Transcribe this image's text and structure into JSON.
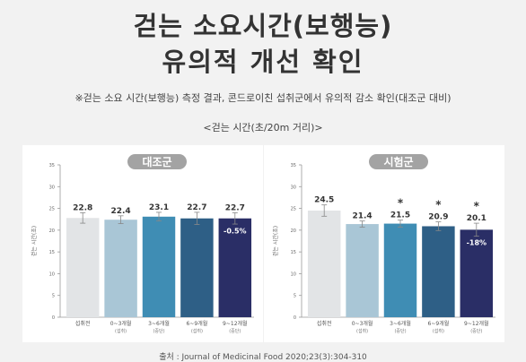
{
  "header": {
    "title_line1": "걷는 소요시간(보행능)",
    "title_line2": "유의적 개선 확인",
    "note": "※걷는 소요 시간(보행능) 측정 결과, 콘드로이친 섭취군에서 유의적 감소 확인(대조군 대비)",
    "unit_label": "<걷는 시간(초/20m 거리)>"
  },
  "colors": {
    "pill": "#a3a3a3",
    "bar_0": "#e2e4e6",
    "bar_1": "#a9c6d6",
    "bar_2": "#3f8db4",
    "bar_3": "#2e5f86",
    "bar_4": "#2a2e66",
    "axis": "#999999",
    "text": "#333333"
  },
  "chart_data": [
    {
      "type": "bar",
      "title": "대조군",
      "ylabel": "걷는 시간(초)",
      "ylim": [
        0,
        35
      ],
      "yticks": [
        "0",
        "5",
        "10",
        "15",
        "20",
        "25",
        "30",
        "35"
      ],
      "categories": [
        {
          "line1": "섭취전",
          "line2": ""
        },
        {
          "line1": "0~3개월",
          "line2": "(섭취)"
        },
        {
          "line1": "3~6개월",
          "line2": "(중단)"
        },
        {
          "line1": "6~9개월",
          "line2": "(섭취)"
        },
        {
          "line1": "9~12개월",
          "line2": "(중단)"
        }
      ],
      "values": [
        22.8,
        22.4,
        23.1,
        22.7,
        22.7
      ],
      "value_labels": [
        "22.8",
        "22.4",
        "23.1",
        "22.7",
        "22.7"
      ],
      "errors": [
        1.2,
        0.9,
        1.0,
        1.4,
        1.3
      ],
      "significant": [
        false,
        false,
        false,
        false,
        false
      ],
      "change_label": "-0.5%"
    },
    {
      "type": "bar",
      "title": "시험군",
      "ylabel": "걷는 시간(초)",
      "ylim": [
        0,
        35
      ],
      "yticks": [
        "0",
        "5",
        "10",
        "15",
        "20",
        "25",
        "30",
        "35"
      ],
      "categories": [
        {
          "line1": "섭취전",
          "line2": ""
        },
        {
          "line1": "0~3개월",
          "line2": "(섭취)"
        },
        {
          "line1": "3~6개월",
          "line2": "(중단)"
        },
        {
          "line1": "6~9개월",
          "line2": "(섭취)"
        },
        {
          "line1": "9~12개월",
          "line2": "(중단)"
        }
      ],
      "values": [
        24.5,
        21.4,
        21.5,
        20.9,
        20.1
      ],
      "value_labels": [
        "24.5",
        "21.4",
        "21.5",
        "20.9",
        "20.1"
      ],
      "errors": [
        1.3,
        0.7,
        0.8,
        1.0,
        1.5
      ],
      "significant": [
        false,
        false,
        true,
        true,
        true
      ],
      "significance_mark": "*",
      "change_label": "-18%"
    }
  ],
  "footer": "출처 : Journal of Medicinal Food 2020;23(3):304-310"
}
